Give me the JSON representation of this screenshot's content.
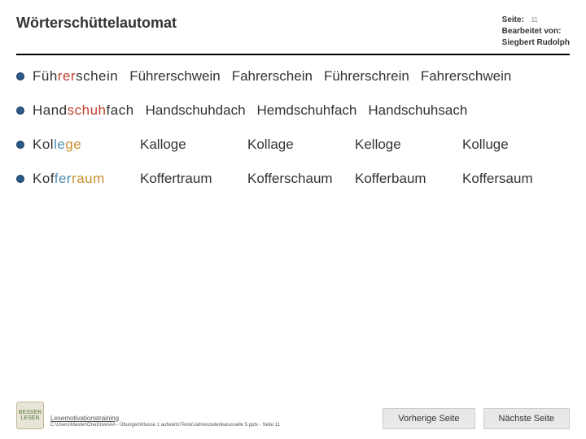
{
  "header": {
    "title": "Wörterschüttelautomat",
    "page_label": "Seite:",
    "page_num": "11",
    "edited_label": "Bearbeitet von:",
    "edited_by": "Siegbert Rudolph"
  },
  "colors": {
    "text": "#333333",
    "accent1": "#c44030",
    "accent2": "#5090b0",
    "accent3": "#c89030",
    "bullet": "#2a5a8a",
    "button_bg": "#e8e8e8"
  },
  "rows": [
    {
      "words": [
        {
          "frags": [
            [
              "Füh",
              "#333333"
            ],
            [
              "rer",
              "#c44030"
            ],
            [
              "schein",
              "#333333"
            ]
          ]
        },
        {
          "frags": [
            [
              "Führerschwein",
              "#333333"
            ]
          ]
        },
        {
          "frags": [
            [
              "Fahrerschein",
              "#333333"
            ]
          ]
        },
        {
          "frags": [
            [
              "Führerschrein",
              "#333333"
            ]
          ]
        },
        {
          "frags": [
            [
              "Fahrerschwein",
              "#333333"
            ]
          ]
        }
      ]
    },
    {
      "words": [
        {
          "frags": [
            [
              "Hand",
              "#333333"
            ],
            [
              "schuh",
              "#c44030"
            ],
            [
              "fach",
              "#333333"
            ]
          ]
        },
        {
          "frags": [
            [
              "Handschuhdach",
              "#333333"
            ]
          ]
        },
        {
          "frags": [
            [
              "Hemdschuhfach",
              "#333333"
            ]
          ]
        },
        {
          "frags": [
            [
              "Handschuhsach",
              "#333333"
            ]
          ]
        }
      ]
    },
    {
      "words": [
        {
          "frags": [
            [
              "Kol",
              "#333333"
            ],
            [
              "le",
              "#5090b0"
            ],
            [
              "ge",
              "#c89030"
            ]
          ]
        },
        {
          "frags": [
            [
              "Kalloge",
              "#333333"
            ]
          ]
        },
        {
          "frags": [
            [
              "Kollage",
              "#333333"
            ]
          ]
        },
        {
          "frags": [
            [
              "Kelloge",
              "#333333"
            ]
          ]
        },
        {
          "frags": [
            [
              "Kolluge",
              "#333333"
            ]
          ]
        }
      ]
    },
    {
      "words": [
        {
          "frags": [
            [
              "Kof",
              "#333333"
            ],
            [
              "fer",
              "#5090b0"
            ],
            [
              "raum",
              "#c89030"
            ]
          ]
        },
        {
          "frags": [
            [
              "Koffertraum",
              "#333333"
            ]
          ]
        },
        {
          "frags": [
            [
              "Kofferschaum",
              "#333333"
            ]
          ]
        },
        {
          "frags": [
            [
              "Kofferbaum",
              "#333333"
            ]
          ]
        },
        {
          "frags": [
            [
              "Koffersaum",
              "#333333"
            ]
          ]
        }
      ]
    }
  ],
  "footer": {
    "motto": "Lesemotivationstraining",
    "path": "C:\\Users\\Master\\OneDrive\\AA - Übungen\\Klasse 1 aufwärts\\Texte\\Jahreszeitenkarusselle 5.pptx - Seite 11",
    "prev": "Vorherige Seite",
    "next": "Nächste Seite",
    "logo_text": "BESSER LESEN"
  }
}
